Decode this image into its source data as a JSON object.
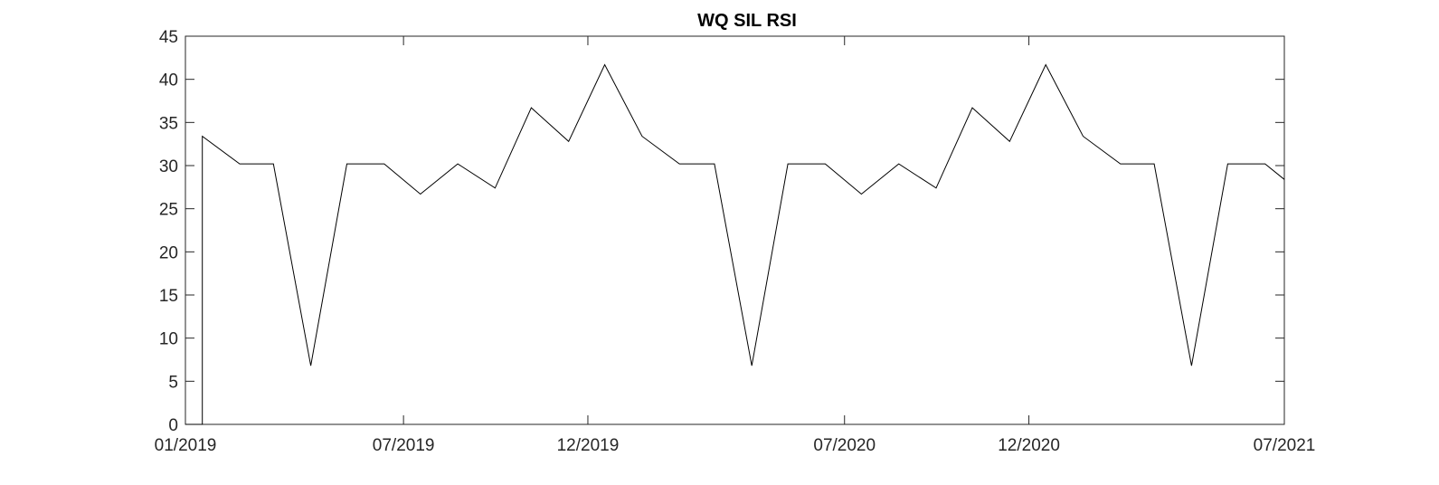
{
  "chart_data": {
    "type": "line",
    "title": "WQ SIL RSI",
    "xlabel": "",
    "ylabel": "",
    "xlim": [
      "2019-01-01",
      "2021-07-01"
    ],
    "ylim": [
      0,
      45
    ],
    "grid": false,
    "x_ticks": [
      {
        "date": "2019-01-01",
        "label": "01/2019"
      },
      {
        "date": "2019-07-01",
        "label": "07/2019"
      },
      {
        "date": "2019-12-01",
        "label": "12/2019"
      },
      {
        "date": "2020-07-01",
        "label": "07/2020"
      },
      {
        "date": "2020-12-01",
        "label": "12/2020"
      },
      {
        "date": "2021-07-01",
        "label": "07/2021"
      }
    ],
    "y_ticks": [
      0,
      5,
      10,
      15,
      20,
      25,
      30,
      35,
      40,
      45
    ],
    "series": [
      {
        "name": "",
        "color": "#000000",
        "x": [
          "2019-01-01",
          "2019-01-15",
          "2019-01-15",
          "2019-02-15",
          "2019-03-15",
          "2019-04-15",
          "2019-05-15",
          "2019-06-15",
          "2019-07-15",
          "2019-08-15",
          "2019-09-15",
          "2019-10-15",
          "2019-11-15",
          "2019-12-15",
          "2020-01-15",
          "2020-02-15",
          "2020-03-15",
          "2020-04-15",
          "2020-05-15",
          "2020-06-15",
          "2020-07-15",
          "2020-08-15",
          "2020-09-15",
          "2020-10-15",
          "2020-11-15",
          "2020-12-15",
          "2021-01-15",
          "2021-02-15",
          "2021-03-15",
          "2021-04-15",
          "2021-05-15",
          "2021-06-15",
          "2021-07-01"
        ],
        "values": [
          0,
          0,
          33.4,
          30.2,
          30.2,
          6.8,
          30.2,
          30.2,
          26.7,
          30.2,
          27.4,
          36.7,
          32.8,
          41.7,
          33.4,
          30.2,
          30.2,
          6.8,
          30.2,
          30.2,
          26.7,
          30.2,
          27.4,
          36.7,
          32.8,
          41.7,
          33.4,
          30.2,
          30.2,
          6.8,
          30.2,
          30.2,
          28.4
        ]
      }
    ]
  }
}
